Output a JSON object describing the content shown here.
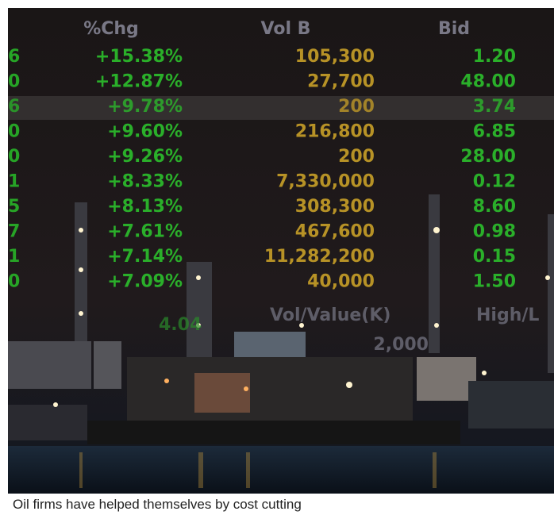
{
  "image": {
    "ticker": {
      "headers": [
        "%Chg",
        "Vol B",
        "Bid"
      ],
      "rows": [
        [
          "6",
          "+15.38%",
          "105,300",
          "1.20"
        ],
        [
          "0",
          "+12.87%",
          "27,700",
          "48.00"
        ],
        [
          "6",
          "+9.78%",
          "200",
          "3.74"
        ],
        [
          "0",
          "+9.60%",
          "216,800",
          "6.85"
        ],
        [
          "0",
          "+9.26%",
          "200",
          "28.00"
        ],
        [
          "1",
          "+8.33%",
          "7,330,000",
          "0.12"
        ],
        [
          "5",
          "+8.13%",
          "308,300",
          "8.60"
        ],
        [
          "7",
          "+7.61%",
          "467,600",
          "0.98"
        ],
        [
          "1",
          "+7.14%",
          "11,282,200",
          "0.15"
        ],
        [
          "0",
          "+7.09%",
          "40,000",
          "1.50"
        ]
      ]
    },
    "lower_overlay": [
      "4.04",
      "Vol/Value(K)",
      "High/L",
      "2,000"
    ]
  },
  "caption": "Oil firms have helped themselves by cost cutting"
}
